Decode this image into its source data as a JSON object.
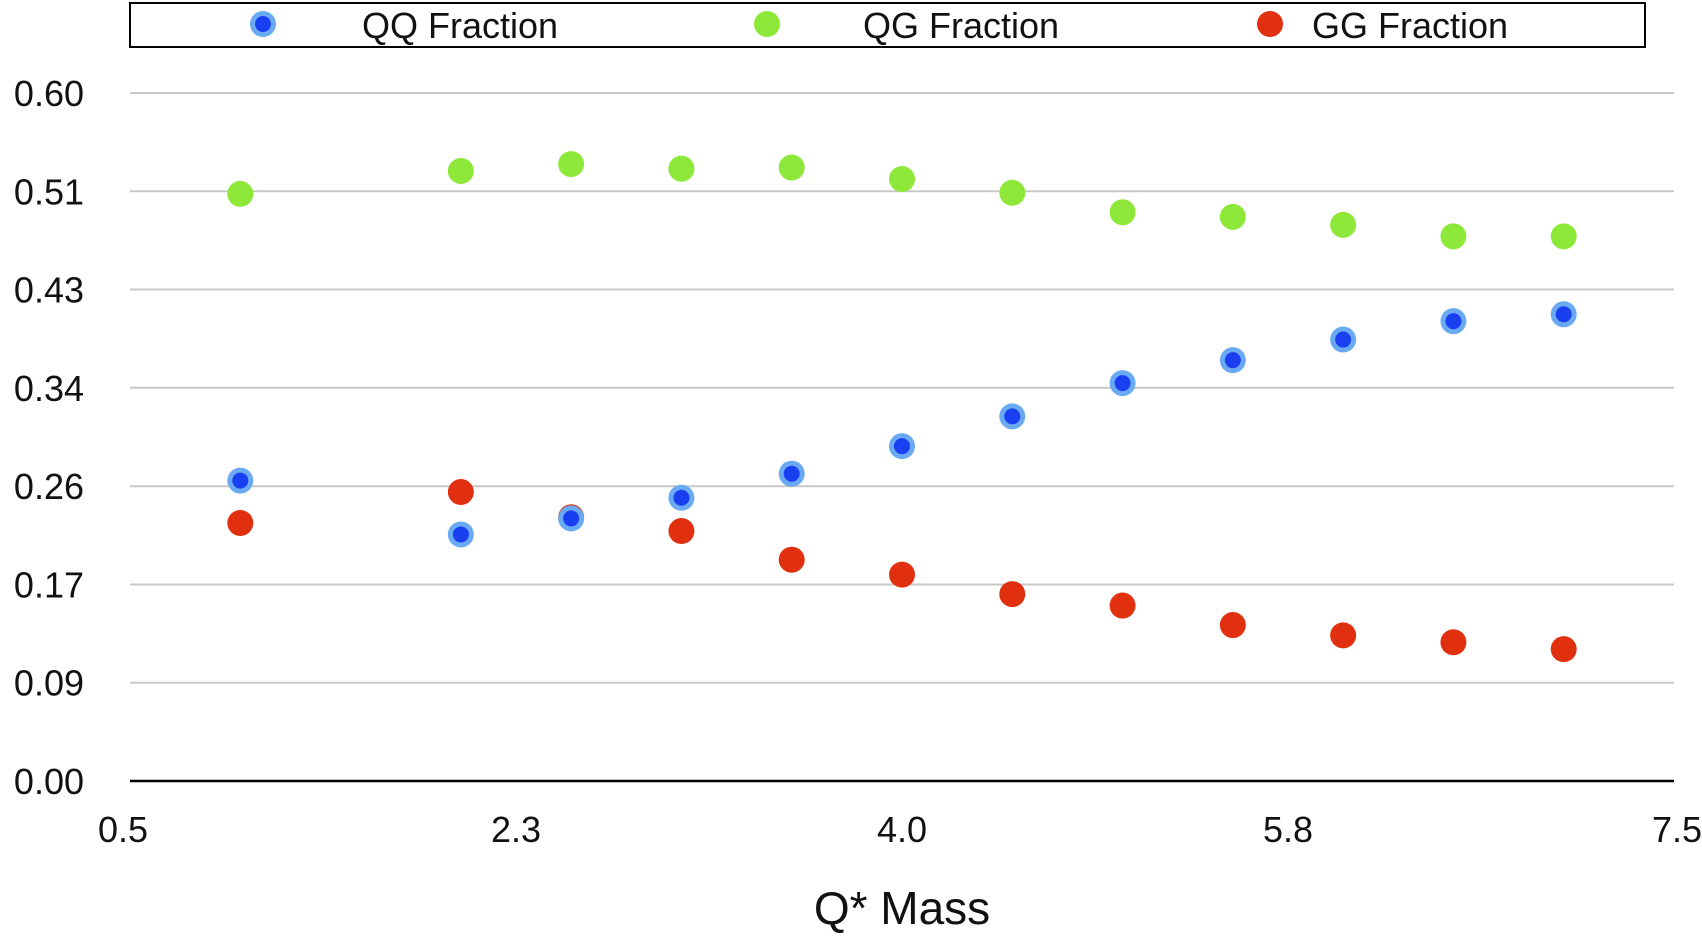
{
  "chart_data": {
    "type": "scatter",
    "title": "",
    "xlabel": "Q* Mass",
    "ylabel": "",
    "xlim": [
      0.5,
      7.5
    ],
    "ylim": [
      0.0,
      0.6
    ],
    "x_ticks": [
      "0.5",
      "2.3",
      "4.0",
      "5.8",
      "7.5"
    ],
    "x_tick_values": [
      0.5,
      2.25,
      4.0,
      5.75,
      7.5
    ],
    "y_ticks": [
      "0.00",
      "0.09",
      "0.17",
      "0.26",
      "0.34",
      "0.43",
      "0.51",
      "0.60"
    ],
    "y_tick_values": [
      0.0,
      0.0857,
      0.1714,
      0.2571,
      0.3429,
      0.4286,
      0.5143,
      0.6
    ],
    "grid": true,
    "legend_position": "top",
    "x": [
      1.0,
      2.0,
      2.5,
      3.0,
      3.5,
      4.0,
      4.5,
      5.0,
      5.5,
      6.0,
      6.5,
      7.0
    ],
    "series": [
      {
        "name": "QQ Fraction",
        "color": "#1a3ff0",
        "ring_color": "#6aaaf2",
        "values": [
          0.262,
          0.215,
          0.229,
          0.247,
          0.268,
          0.292,
          0.318,
          0.347,
          0.367,
          0.385,
          0.401,
          0.407
        ]
      },
      {
        "name": "QG Fraction",
        "color": "#8ee83a",
        "ring_color": "#8ee83a",
        "values": [
          0.512,
          0.532,
          0.538,
          0.534,
          0.535,
          0.525,
          0.513,
          0.496,
          0.492,
          0.485,
          0.475,
          0.475
        ]
      },
      {
        "name": "GG Fraction",
        "color": "#e03010",
        "ring_color": "#e03010",
        "values": [
          0.225,
          0.252,
          0.23,
          0.218,
          0.193,
          0.18,
          0.163,
          0.153,
          0.136,
          0.127,
          0.121,
          0.115
        ]
      }
    ]
  }
}
